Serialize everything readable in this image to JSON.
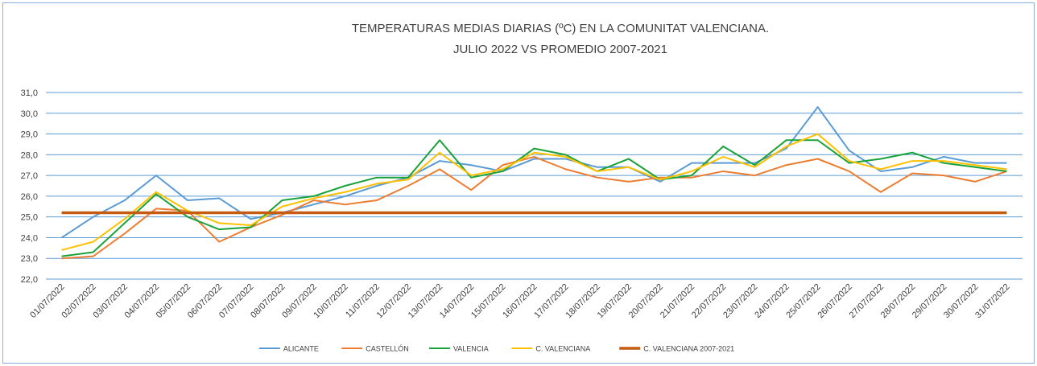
{
  "chart_data": {
    "type": "line",
    "title": [
      "TEMPERATURAS MEDIAS DIARIAS (ºC) EN LA COMUNITAT VALENCIANA.",
      "JULIO 2022 VS PROMEDIO 2007-2021"
    ],
    "categories": [
      "01/07/2022",
      "02/07/2022",
      "03/07/2022",
      "04/07/2022",
      "05/07/2022",
      "06/07/2022",
      "07/07/2022",
      "08/07/2022",
      "09/07/2022",
      "10/07/2022",
      "11/07/2022",
      "12/07/2022",
      "13/07/2022",
      "14/07/2022",
      "15/07/2022",
      "16/07/2022",
      "17/07/2022",
      "18/07/2022",
      "19/07/2022",
      "20/07/2022",
      "21/07/2022",
      "22/07/2022",
      "23/07/2022",
      "24/07/2022",
      "25/07/2022",
      "26/07/2022",
      "27/07/2022",
      "28/07/2022",
      "29/07/2022",
      "30/07/2022",
      "31/07/2022"
    ],
    "series": [
      {
        "name": "ALICANTE",
        "color": "#5b9bd5",
        "values": [
          24.0,
          25.0,
          25.8,
          27.0,
          25.8,
          25.9,
          24.9,
          25.2,
          25.6,
          26.0,
          26.5,
          26.9,
          27.7,
          27.5,
          27.2,
          27.8,
          27.8,
          27.4,
          27.4,
          26.7,
          27.6,
          27.6,
          27.6,
          28.3,
          30.3,
          28.2,
          27.2,
          27.4,
          27.9,
          27.6,
          27.6
        ]
      },
      {
        "name": "CASTELLÓN",
        "color": "#ed7d31",
        "values": [
          23.0,
          23.1,
          24.2,
          25.4,
          25.3,
          23.8,
          24.5,
          25.1,
          25.8,
          25.6,
          25.8,
          26.5,
          27.3,
          26.3,
          27.5,
          27.9,
          27.3,
          26.9,
          26.7,
          26.9,
          26.9,
          27.2,
          27.0,
          27.5,
          27.8,
          27.2,
          26.2,
          27.1,
          27.0,
          26.7,
          27.2
        ]
      },
      {
        "name": "VALENCIA",
        "color": "#1aa23a",
        "values": [
          23.1,
          23.3,
          24.7,
          26.1,
          25.0,
          24.4,
          24.5,
          25.8,
          26.0,
          26.5,
          26.9,
          26.9,
          28.7,
          26.9,
          27.2,
          28.3,
          28.0,
          27.2,
          27.8,
          26.8,
          27.0,
          28.4,
          27.5,
          28.7,
          28.7,
          27.6,
          27.8,
          28.1,
          27.6,
          27.4,
          27.2
        ]
      },
      {
        "name": "C. VALENCIANA",
        "color": "#ffc000",
        "values": [
          23.4,
          23.8,
          24.9,
          26.2,
          25.3,
          24.7,
          24.6,
          25.5,
          25.9,
          26.2,
          26.6,
          26.8,
          28.1,
          27.0,
          27.3,
          28.1,
          27.9,
          27.2,
          27.4,
          26.8,
          27.2,
          27.9,
          27.4,
          28.4,
          29.0,
          27.7,
          27.3,
          27.7,
          27.7,
          27.5,
          27.3
        ]
      },
      {
        "name": "C. VALENCIANA 2007-2021",
        "color": "#c55a11",
        "values": [
          25.2,
          25.2,
          25.2,
          25.2,
          25.2,
          25.2,
          25.2,
          25.2,
          25.2,
          25.2,
          25.2,
          25.2,
          25.2,
          25.2,
          25.2,
          25.2,
          25.2,
          25.2,
          25.2,
          25.2,
          25.2,
          25.2,
          25.2,
          25.2,
          25.2,
          25.2,
          25.2,
          25.2,
          25.2,
          25.2,
          25.2
        ]
      }
    ],
    "ylim": [
      22,
      31
    ],
    "yticks": [
      {
        "value": 22,
        "label": "22,0"
      },
      {
        "value": 23,
        "label": "23,0"
      },
      {
        "value": 24,
        "label": "24,0"
      },
      {
        "value": 25,
        "label": "25,0"
      },
      {
        "value": 26,
        "label": "26,0"
      },
      {
        "value": 27,
        "label": "27,0"
      },
      {
        "value": 28,
        "label": "28,0"
      },
      {
        "value": 29,
        "label": "29,0"
      },
      {
        "value": 30,
        "label": "30,0"
      },
      {
        "value": 31,
        "label": "31,0"
      }
    ],
    "grid": true,
    "legend": "bottom"
  }
}
